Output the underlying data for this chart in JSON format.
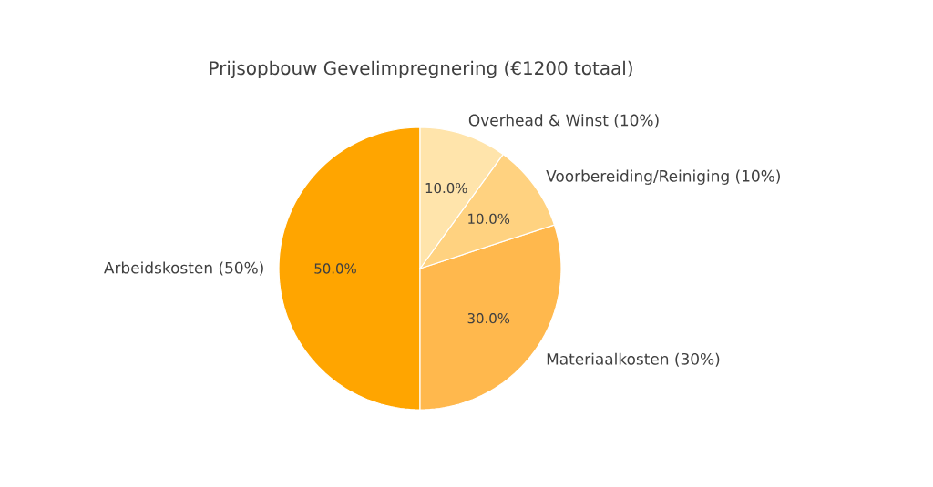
{
  "chart_data": {
    "type": "pie",
    "title": "Prijsopbouw Gevelimpregnering (€1200 totaal)",
    "categories": [
      "Arbeidskosten (50%)",
      "Materiaalkosten (30%)",
      "Voorbereiding/Reiniging (10%)",
      "Overhead & Winst (10%)"
    ],
    "values": [
      50,
      30,
      10,
      10
    ],
    "colors": [
      "#ffa500",
      "#ffb84d",
      "#ffd280",
      "#ffe4ab"
    ],
    "value_labels": [
      "50.0%",
      "30.0%",
      "10.0%",
      "10.0%"
    ],
    "legend": false
  }
}
